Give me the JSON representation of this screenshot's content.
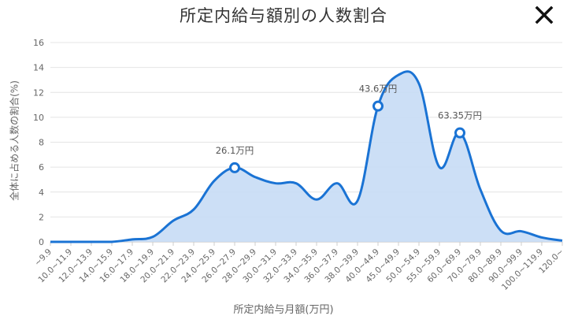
{
  "title": "所定内給与額別の人数割合",
  "close_icon": "close-icon",
  "chart_data": {
    "type": "area",
    "ylabel": "全体に占める人数の割合(%)",
    "xlabel": "所定内給与月額(万円)",
    "ylim": [
      0,
      16
    ],
    "yticks": [
      0,
      2,
      4,
      6,
      8,
      10,
      12,
      14,
      16
    ],
    "grid": true,
    "categories": [
      "~9.9",
      "10.0~11.9",
      "12.0~13.9",
      "14.0~15.9",
      "16.0~17.9",
      "18.0~19.9",
      "20.0~21.9",
      "22.0~23.9",
      "24.0~25.9",
      "26.0~27.9",
      "28.0~29.9",
      "30.0~31.9",
      "32.0~33.9",
      "34.0~35.9",
      "36.0~37.9",
      "38.0~39.9",
      "40.0~44.9",
      "45.0~49.9",
      "50.0~54.9",
      "55.0~59.9",
      "60.0~69.9",
      "70.0~79.9",
      "80.0~89.9",
      "90.0~99.9",
      "100.0~119.9",
      "120.0~"
    ],
    "values": [
      0,
      0,
      0,
      0,
      0.2,
      0.4,
      1.7,
      2.6,
      4.9,
      5.95,
      5.2,
      4.7,
      4.7,
      3.4,
      4.7,
      3.3,
      10.9,
      13.4,
      12.7,
      6.0,
      8.75,
      4.2,
      0.9,
      0.85,
      0.35,
      0.1
    ],
    "color": "#1a73d4",
    "fill": "#c6dcf5",
    "annotations": [
      {
        "index": 9,
        "label": "26.1万円"
      },
      {
        "index": 16,
        "label": "43.6万円"
      },
      {
        "index": 20,
        "label": "63.35万円"
      }
    ]
  }
}
